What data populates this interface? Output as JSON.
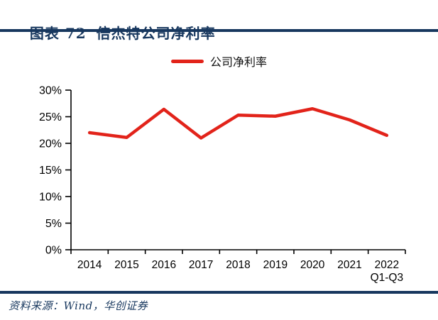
{
  "header": {
    "figure_label": "图表 72",
    "title": "倍杰特公司净利率"
  },
  "legend": {
    "items": [
      {
        "label": "公司净利率",
        "color": "#e2231a"
      }
    ]
  },
  "chart_data": {
    "type": "line",
    "title": "倍杰特公司净利率",
    "categories": [
      "2014",
      "2015",
      "2016",
      "2017",
      "2018",
      "2019",
      "2020",
      "2021",
      "2022\nQ1-Q3"
    ],
    "series": [
      {
        "name": "公司净利率",
        "color": "#e2231a",
        "values": [
          22.0,
          21.1,
          26.4,
          21.0,
          25.3,
          25.1,
          26.5,
          24.4,
          21.5
        ]
      }
    ],
    "unit": "%",
    "ylim": [
      0,
      30
    ],
    "ytick_step": 5,
    "ytick_labels": [
      "0%",
      "5%",
      "10%",
      "15%",
      "20%",
      "25%",
      "30%"
    ],
    "grid": false,
    "markers": false,
    "line_width": 4.5,
    "legend_position": "top-center"
  },
  "footer": {
    "source": "资料来源：Wind，华创证券"
  },
  "colors": {
    "navy": "#17375e",
    "red": "#e2231a",
    "axis": "#000000",
    "background": "#ffffff"
  }
}
